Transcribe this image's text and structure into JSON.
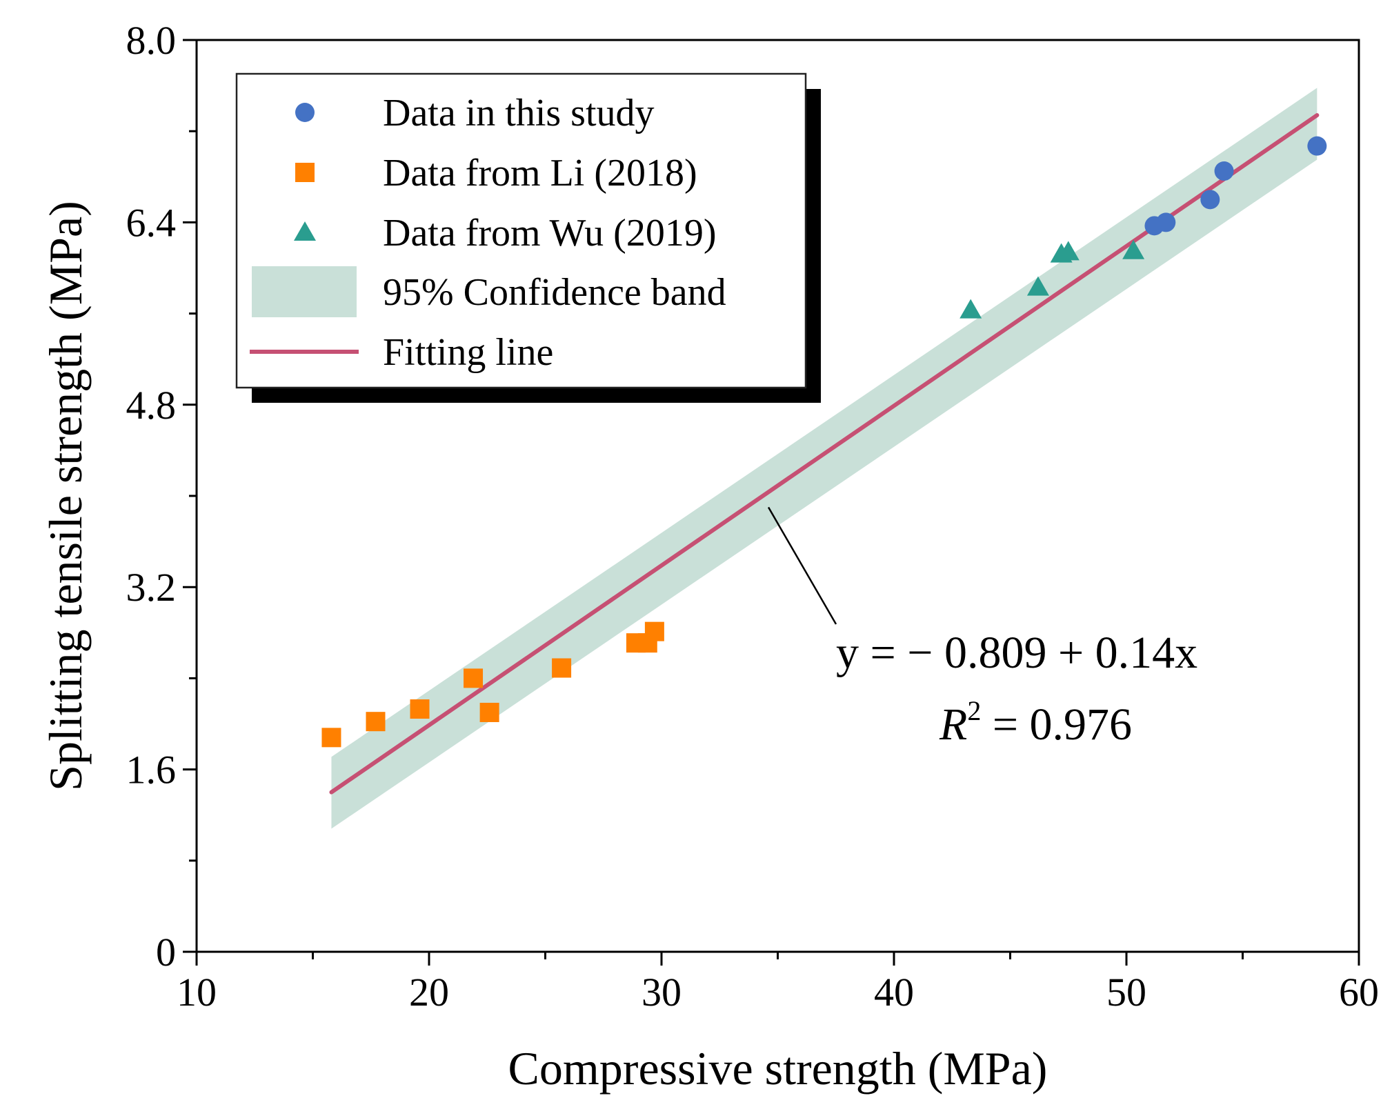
{
  "chart_data": {
    "type": "scatter",
    "xlabel": "Compressive strength (MPa)",
    "ylabel": "Splitting tensile strength (MPa)",
    "xlim": [
      10,
      60
    ],
    "ylim": [
      0,
      8.0
    ],
    "x_ticks": [
      10,
      20,
      30,
      40,
      50,
      60
    ],
    "x_tick_labels": [
      "10",
      "20",
      "30",
      "40",
      "50",
      "60"
    ],
    "y_ticks": [
      0,
      1.6,
      3.2,
      4.8,
      6.4,
      8.0
    ],
    "y_tick_labels": [
      "0",
      "1.6",
      "3.2",
      "4.8",
      "6.4",
      "8.0"
    ],
    "legend_position": "top-left",
    "series": [
      {
        "name": "Data in this study",
        "marker": "circle",
        "color": "#4472C4",
        "x": [
          51.2,
          51.7,
          53.6,
          54.2,
          58.2
        ],
        "y": [
          6.37,
          6.4,
          6.6,
          6.85,
          7.07
        ]
      },
      {
        "name": "Data from Li (2018)",
        "marker": "square",
        "color": "#FF8000",
        "x": [
          15.8,
          17.7,
          19.6,
          21.9,
          22.6,
          25.7,
          28.9,
          29.4,
          29.7
        ],
        "y": [
          1.88,
          2.02,
          2.13,
          2.4,
          2.1,
          2.49,
          2.71,
          2.71,
          2.81
        ]
      },
      {
        "name": "Data from Wu (2019)",
        "marker": "triangle",
        "color": "#2A9D8F",
        "x": [
          43.3,
          46.2,
          47.2,
          47.5,
          50.3
        ],
        "y": [
          5.63,
          5.83,
          6.12,
          6.14,
          6.15
        ]
      }
    ],
    "confidence_band": {
      "name": "95% Confidence band",
      "color": "#C9E0D8",
      "x": [
        15.8,
        58.2
      ],
      "lower": [
        1.08,
        6.95
      ],
      "upper": [
        1.71,
        7.58
      ]
    },
    "fit_line": {
      "name": "Fitting line",
      "color": "#C65073",
      "x": [
        15.8,
        58.2
      ],
      "y": [
        1.4,
        7.34
      ]
    },
    "annotation": {
      "equation": "y = − 0.809 + 0.14x",
      "r2_prefix": "R",
      "r2_sup": "2",
      "r2_value": " = 0.976",
      "pointer_target": [
        34.6,
        3.9
      ]
    }
  }
}
